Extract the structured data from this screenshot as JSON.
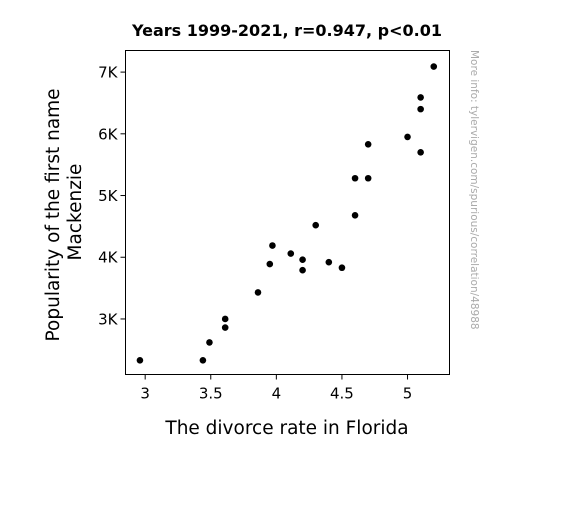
{
  "chart_data": {
    "type": "scatter",
    "title": "Years 1999-2021, r=0.947, p<0.01",
    "xlabel": "The divorce rate in Florida",
    "ylabel_lines": [
      "Popularity of the first name",
      "Mackenzie"
    ],
    "watermark": "More info: tylervigen.com/spurious/correlation/48988",
    "xlim": [
      2.85,
      5.32
    ],
    "ylim": [
      2100,
      7350
    ],
    "x_ticks": [
      {
        "value": 3,
        "label": "3"
      },
      {
        "value": 3.5,
        "label": "3.5"
      },
      {
        "value": 4,
        "label": "4"
      },
      {
        "value": 4.5,
        "label": "4.5"
      },
      {
        "value": 5,
        "label": "5"
      }
    ],
    "y_ticks": [
      {
        "value": 3000,
        "label": "3K"
      },
      {
        "value": 4000,
        "label": "4K"
      },
      {
        "value": 5000,
        "label": "5K"
      },
      {
        "value": 6000,
        "label": "6K"
      },
      {
        "value": 7000,
        "label": "7K"
      }
    ],
    "grid": false,
    "legend": "none",
    "marker_color": "#000000",
    "points": [
      {
        "x": 2.96,
        "y": 2330
      },
      {
        "x": 3.44,
        "y": 2330
      },
      {
        "x": 3.49,
        "y": 2620
      },
      {
        "x": 3.61,
        "y": 2860
      },
      {
        "x": 3.61,
        "y": 3000
      },
      {
        "x": 3.86,
        "y": 3430
      },
      {
        "x": 3.95,
        "y": 3890
      },
      {
        "x": 3.97,
        "y": 4190
      },
      {
        "x": 4.11,
        "y": 4060
      },
      {
        "x": 4.2,
        "y": 3960
      },
      {
        "x": 4.2,
        "y": 3790
      },
      {
        "x": 4.3,
        "y": 4520
      },
      {
        "x": 4.4,
        "y": 3920
      },
      {
        "x": 4.5,
        "y": 3830
      },
      {
        "x": 4.6,
        "y": 4680
      },
      {
        "x": 4.6,
        "y": 5280
      },
      {
        "x": 4.7,
        "y": 5280
      },
      {
        "x": 4.7,
        "y": 5830
      },
      {
        "x": 5.0,
        "y": 5950
      },
      {
        "x": 5.1,
        "y": 5700
      },
      {
        "x": 5.1,
        "y": 6400
      },
      {
        "x": 5.1,
        "y": 6590
      },
      {
        "x": 5.2,
        "y": 7090
      }
    ]
  }
}
